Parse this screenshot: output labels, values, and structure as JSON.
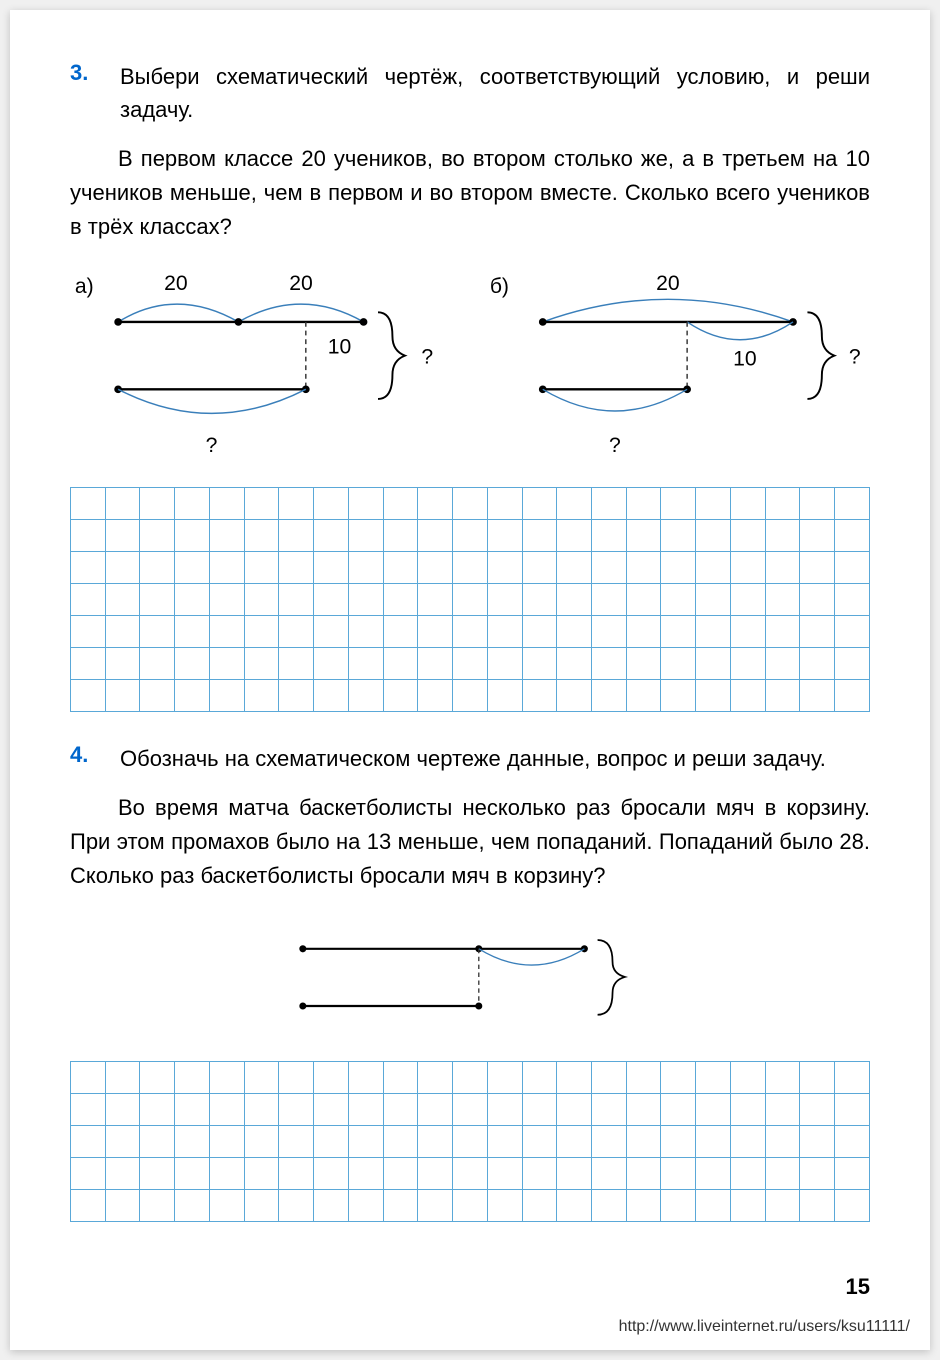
{
  "page": {
    "number": "15",
    "footer_url": "http://www.liveinternet.ru/users/ksu11111/"
  },
  "p3": {
    "number": "3.",
    "instruction": "Выбери схематический чертёж, соответствующий условию, и реши задачу.",
    "body": "В первом классе 20 учеников, во втором столько же, а в третьем на 10 учеников меньше, чем в первом и во втором вместе. Сколько всего учеников в трёх классах?",
    "diagram_a": {
      "label": "а)",
      "top_arcs": [
        "20",
        "20"
      ],
      "offset_label": "10",
      "question_top": "?",
      "question_bottom": "?"
    },
    "diagram_b": {
      "label": "б)",
      "top_arc": "20",
      "offset_label": "10",
      "question_top": "?",
      "question_bottom": "?"
    },
    "grid": {
      "rows": 7,
      "cols": 23
    },
    "colors": {
      "num": "#0066cc",
      "line": "#000",
      "arc": "#3a7fba",
      "dash": "#444",
      "grid": "#5aa8d8"
    }
  },
  "p4": {
    "number": "4.",
    "instruction": "Обозначь на схематическом чертеже данные, вопрос и реши задачу.",
    "body": "Во время матча баскетболисты несколько раз бросали мяч в корзину. При этом промахов было на 13 меньше, чем попаданий. Попаданий было 28. Сколько раз баскетболисты бросали мяч в корзину?",
    "grid": {
      "rows": 5,
      "cols": 23
    }
  }
}
